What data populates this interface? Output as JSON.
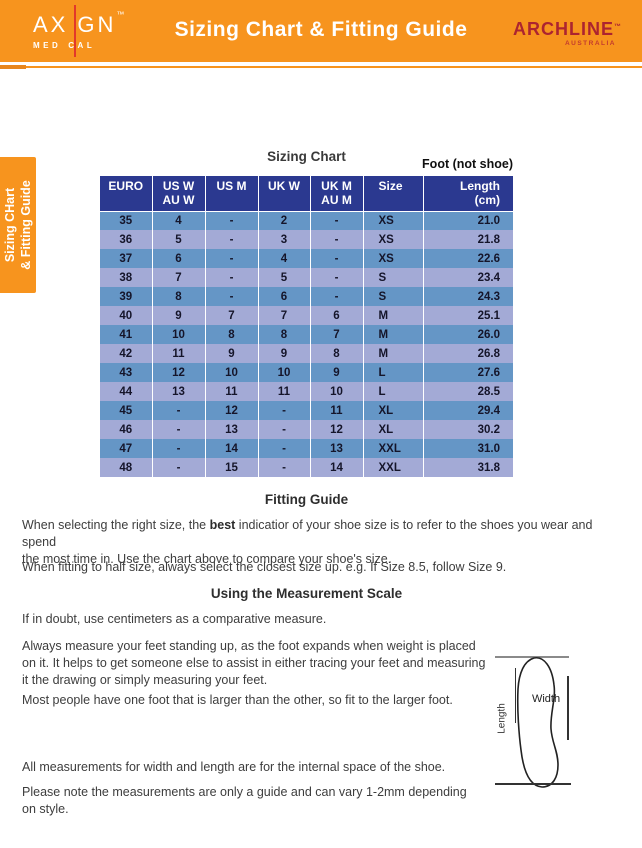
{
  "colors": {
    "orange": "#F7941E",
    "navy_header": "#2B3990",
    "row_blue": "#6596C6",
    "row_periwinkle": "#A3AAD6",
    "archline_red": "#AC2430",
    "logo_line_red": "#E2382B"
  },
  "header": {
    "title": "Sizing Chart & Fitting Guide",
    "axign": {
      "part1": "AX",
      "part2": "GN",
      "tm": "™",
      "sub1": "MED",
      "sub2": "CAL"
    },
    "archline": {
      "name": "ARCHLINE",
      "tm": "™",
      "sub": "AUSTRALIA"
    }
  },
  "side_tab": {
    "text": "Sizing CHart\n& Fitting Guide"
  },
  "sizing_chart": {
    "title": "Sizing Chart",
    "foot_note": "Foot (not shoe)",
    "columns": [
      {
        "l1": "EURO"
      },
      {
        "l1": "US W",
        "l2": "AU W"
      },
      {
        "l1": "US M"
      },
      {
        "l1": "UK W"
      },
      {
        "l1": "UK M",
        "l2": "AU M"
      },
      {
        "l1": "Size"
      },
      {
        "l1": "Length",
        "l2": "(cm)"
      }
    ],
    "rows": [
      [
        "35",
        "4",
        "-",
        "2",
        "-",
        "XS",
        "21.0"
      ],
      [
        "36",
        "5",
        "-",
        "3",
        "-",
        "XS",
        "21.8"
      ],
      [
        "37",
        "6",
        "-",
        "4",
        "-",
        "XS",
        "22.6"
      ],
      [
        "38",
        "7",
        "-",
        "5",
        "-",
        "S",
        "23.4"
      ],
      [
        "39",
        "8",
        "-",
        "6",
        "-",
        "S",
        "24.3"
      ],
      [
        "40",
        "9",
        "7",
        "7",
        "6",
        "M",
        "25.1"
      ],
      [
        "41",
        "10",
        "8",
        "8",
        "7",
        "M",
        "26.0"
      ],
      [
        "42",
        "11",
        "9",
        "9",
        "8",
        "M",
        "26.8"
      ],
      [
        "43",
        "12",
        "10",
        "10",
        "9",
        "L",
        "27.6"
      ],
      [
        "44",
        "13",
        "11",
        "11",
        "10",
        "L",
        "28.5"
      ],
      [
        "45",
        "-",
        "12",
        "-",
        "11",
        "XL",
        "29.4"
      ],
      [
        "46",
        "-",
        "13",
        "-",
        "12",
        "XL",
        "30.2"
      ],
      [
        "47",
        "-",
        "14",
        "-",
        "13",
        "XXL",
        "31.0"
      ],
      [
        "48",
        "-",
        "15",
        "-",
        "14",
        "XXL",
        "31.8"
      ]
    ]
  },
  "fitting_guide": {
    "heading": "Fitting Guide",
    "p1_pre": "When selecting the right size, the ",
    "p1_bold": "best",
    "p1_post": " indicatior of your shoe size is to refer to the shoes you wear and spend\nthe most time in. Use the chart above to compare your shoe's size.",
    "p2": "When fitting to half size, always select the closest size up. e.g. If Size 8.5, follow Size 9."
  },
  "measurement": {
    "heading": "Using the Measurement Scale",
    "p1": "If in doubt, use centimeters as a comparative measure.",
    "p2": "Always measure your feet standing up, as the foot expands when weight is placed\non it. It helps to get someone else to assist in either tracing your feet and measuring\nit the drawing or simply measuring your feet.",
    "p3": "Most people have one foot that is larger than the other, so fit to the larger foot.",
    "p4": "All measurements for width and length are for the internal space of the shoe.",
    "p5": "Please note the measurements are only a guide and can vary 1-2mm depending\non style.",
    "diagram": {
      "width_label": "Width",
      "length_label": "Length"
    }
  }
}
